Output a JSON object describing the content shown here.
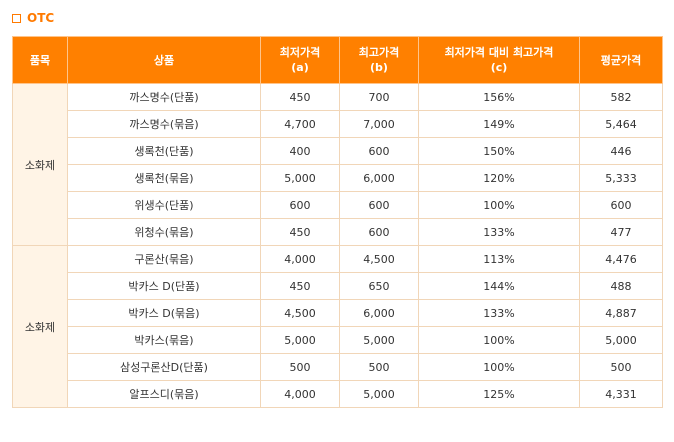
{
  "section": {
    "title": "OTC"
  },
  "table": {
    "headers": {
      "category": "품목",
      "product": "상품",
      "min_price": "최저가격",
      "min_price_sub": "(a)",
      "max_price": "최고가격",
      "max_price_sub": "(b)",
      "ratio": "최저가격 대비 최고가격",
      "ratio_sub": "(c)",
      "avg_price": "평균가격"
    },
    "groups": [
      {
        "label": "소화제",
        "rows": [
          {
            "product": "까스명수(단품)",
            "min": "450",
            "max": "700",
            "ratio": "156%",
            "avg": "582"
          },
          {
            "product": "까스명수(묶음)",
            "min": "4,700",
            "max": "7,000",
            "ratio": "149%",
            "avg": "5,464"
          },
          {
            "product": "생록천(단품)",
            "min": "400",
            "max": "600",
            "ratio": "150%",
            "avg": "446"
          },
          {
            "product": "생록천(묶음)",
            "min": "5,000",
            "max": "6,000",
            "ratio": "120%",
            "avg": "5,333"
          },
          {
            "product": "위생수(단품)",
            "min": "600",
            "max": "600",
            "ratio": "100%",
            "avg": "600"
          },
          {
            "product": "위청수(묶음)",
            "min": "450",
            "max": "600",
            "ratio": "133%",
            "avg": "477"
          }
        ]
      },
      {
        "label": "소화제",
        "rows": [
          {
            "product": "구론산(묶음)",
            "min": "4,000",
            "max": "4,500",
            "ratio": "113%",
            "avg": "4,476"
          },
          {
            "product": "박카스 D(단품)",
            "min": "450",
            "max": "650",
            "ratio": "144%",
            "avg": "488"
          },
          {
            "product": "박카스 D(묶음)",
            "min": "4,500",
            "max": "6,000",
            "ratio": "133%",
            "avg": "4,887"
          },
          {
            "product": "박카스(묶음)",
            "min": "5,000",
            "max": "5,000",
            "ratio": "100%",
            "avg": "5,000"
          },
          {
            "product": "삼성구론산D(단품)",
            "min": "500",
            "max": "500",
            "ratio": "100%",
            "avg": "500"
          },
          {
            "product": "알프스디(묶음)",
            "min": "4,000",
            "max": "5,000",
            "ratio": "125%",
            "avg": "4,331"
          }
        ]
      }
    ]
  },
  "colors": {
    "accent": "#ff7a00",
    "header_bg": "#ff8000",
    "group_bg": "#fff4e6",
    "border": "#f1d6b8"
  }
}
